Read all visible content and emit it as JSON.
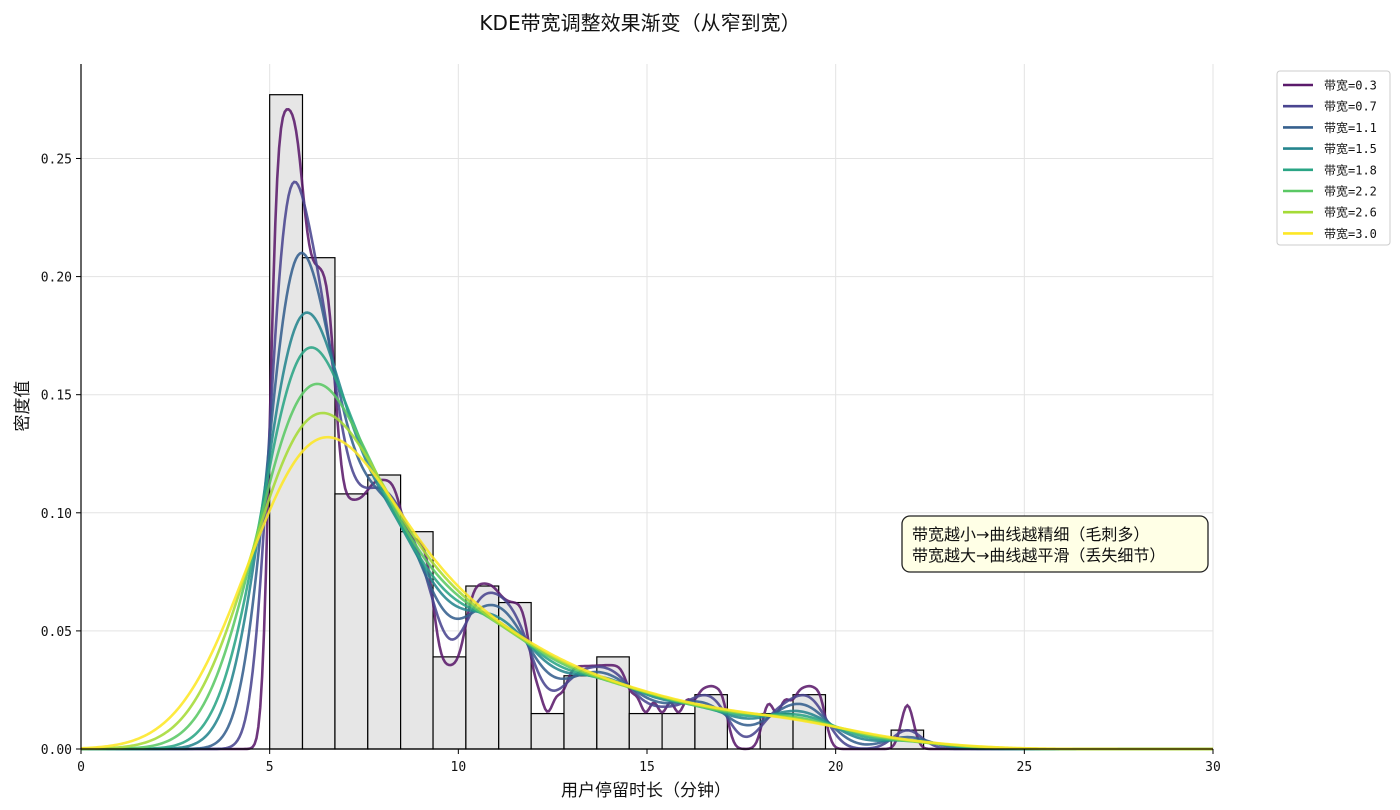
{
  "chart_data": {
    "type": "line",
    "title": "KDE带宽调整效果渐变（从窄到宽）",
    "xlabel": "用户停留时长（分钟）",
    "ylabel": "密度值",
    "xlim": [
      0,
      30
    ],
    "ylim": [
      0,
      0.29
    ],
    "x_ticks": [
      0,
      5,
      10,
      15,
      20,
      25,
      30
    ],
    "x_tick_labels": [
      "0",
      "5",
      "10",
      "15",
      "20",
      "25",
      "30"
    ],
    "y_ticks": [
      0,
      0.05,
      0.1,
      0.15,
      0.2,
      0.25
    ],
    "y_tick_labels": [
      "0.00",
      "0.05",
      "0.10",
      "0.15",
      "0.20",
      "0.25"
    ],
    "grid": true,
    "legend_position": "top-right, outside plot",
    "histogram": {
      "bin_edges": [
        5.0,
        5.87,
        6.73,
        7.6,
        8.47,
        9.33,
        10.2,
        11.07,
        11.93,
        12.8,
        13.67,
        14.53,
        15.4,
        16.27,
        17.13,
        18.0,
        18.87,
        19.73,
        20.6,
        21.47,
        22.33
      ],
      "densities": [
        0.277,
        0.208,
        0.108,
        0.116,
        0.092,
        0.039,
        0.069,
        0.062,
        0.015,
        0.031,
        0.039,
        0.015,
        0.015,
        0.023,
        0.0,
        0.015,
        0.023,
        0.0,
        0.0,
        0.008
      ],
      "fill_color": "#e6e6e6",
      "edge_color": "#000000"
    },
    "series": [
      {
        "name": "带宽=0.3",
        "bandwidth": 0.3,
        "color": "#5b1a6b"
      },
      {
        "name": "带宽=0.7",
        "bandwidth": 0.7,
        "color": "#4a4590"
      },
      {
        "name": "带宽=1.1",
        "bandwidth": 1.1,
        "color": "#36608e"
      },
      {
        "name": "带宽=1.5",
        "bandwidth": 1.5,
        "color": "#25858e"
      },
      {
        "name": "带宽=1.8",
        "bandwidth": 1.8,
        "color": "#2aa585"
      },
      {
        "name": "带宽=2.2",
        "bandwidth": 2.2,
        "color": "#5ac864"
      },
      {
        "name": "带宽=2.6",
        "bandwidth": 2.6,
        "color": "#a5db36"
      },
      {
        "name": "带宽=3.0",
        "bandwidth": 3.0,
        "color": "#fde725"
      }
    ],
    "annotation": {
      "lines": [
        "带宽越小→曲线越精细（毛刺多）",
        "带宽越大→曲线越平滑（丢失细节）"
      ],
      "background": "#ffffe6",
      "border": "#222222"
    }
  }
}
